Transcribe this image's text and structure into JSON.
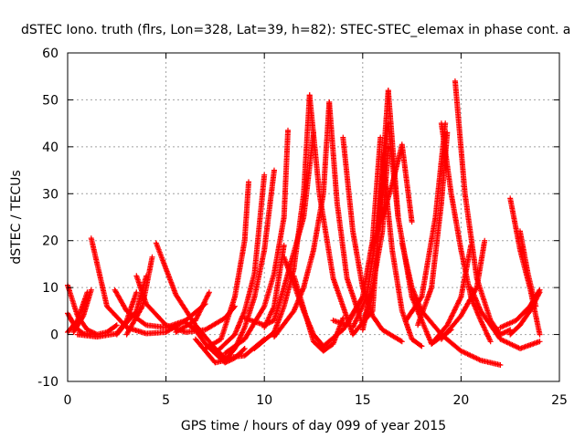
{
  "chart_data": {
    "type": "scatter",
    "title": "dSTEC Iono. truth (flrs, Lon=328, Lat=39, h=82): STEC-STEC_elemax in phase cont. a",
    "xlabel": "GPS time / hours of day 099 of year 2015",
    "ylabel": "dSTEC  / TECUs",
    "xlim": [
      0,
      25
    ],
    "ylim": [
      -10,
      60
    ],
    "xticks": [
      0,
      5,
      10,
      15,
      20,
      25
    ],
    "yticks": [
      -10,
      0,
      10,
      20,
      30,
      40,
      50,
      60
    ],
    "xtick_labels": [
      "0",
      "5",
      "10",
      "15",
      "20",
      "25"
    ],
    "ytick_labels": [
      "-10",
      "0",
      "10",
      "20",
      "30",
      "40",
      "50",
      "60"
    ],
    "grid": true,
    "marker": "plus",
    "color": "#ff0000",
    "series": [
      {
        "x": [
          0.0,
          0.5,
          1.0,
          1.5,
          2.0,
          2.5
        ],
        "y": [
          10.5,
          4.0,
          1.0,
          0.0,
          0.5,
          2.0
        ]
      },
      {
        "x": [
          0.0,
          0.4,
          0.8,
          1.2
        ],
        "y": [
          4.5,
          1.5,
          0.2,
          0.0
        ]
      },
      {
        "x": [
          0.0,
          0.5,
          1.0
        ],
        "y": [
          0.5,
          3.0,
          9.0
        ]
      },
      {
        "x": [
          0.3,
          0.8,
          1.2
        ],
        "y": [
          0.5,
          4.0,
          9.5
        ]
      },
      {
        "x": [
          1.2,
          2.0,
          3.0,
          4.0,
          5.0,
          6.0
        ],
        "y": [
          20.5,
          6.0,
          1.5,
          0.2,
          0.5,
          3.0
        ]
      },
      {
        "x": [
          0.5,
          1.5,
          2.5,
          3.0,
          3.5
        ],
        "y": [
          0.0,
          -0.5,
          0.2,
          3.0,
          9.0
        ]
      },
      {
        "x": [
          2.4,
          3.0,
          4.0,
          5.0,
          6.0,
          7.0
        ],
        "y": [
          9.5,
          5.0,
          2.0,
          1.5,
          3.0,
          6.5
        ]
      },
      {
        "x": [
          3.5,
          4.0,
          5.0,
          6.0,
          7.0,
          8.0,
          8.5
        ],
        "y": [
          12.5,
          6.5,
          2.0,
          0.5,
          1.0,
          3.5,
          6.0
        ]
      },
      {
        "x": [
          2.5,
          3.5,
          4.0
        ],
        "y": [
          0.0,
          5.0,
          12.5
        ]
      },
      {
        "x": [
          4.5,
          5.5,
          6.5,
          7.5,
          8.0,
          9.0,
          10.0
        ],
        "y": [
          19.5,
          8.5,
          2.0,
          -3.0,
          -5.0,
          -4.5,
          -1.0
        ]
      },
      {
        "x": [
          3.0,
          3.8,
          4.3
        ],
        "y": [
          0.0,
          6.0,
          16.5
        ]
      },
      {
        "x": [
          5.5,
          6.5,
          7.2
        ],
        "y": [
          0.5,
          3.0,
          9.0
        ]
      },
      {
        "x": [
          6.0,
          6.5,
          7.0,
          7.5,
          8.0,
          8.5,
          9.0
        ],
        "y": [
          2.5,
          1.0,
          -2.0,
          -4.0,
          -6.0,
          -5.0,
          -3.0
        ]
      },
      {
        "x": [
          6.5,
          7.5,
          8.0,
          8.5,
          9.0,
          9.5,
          10.0,
          10.5
        ],
        "y": [
          -1.0,
          -6.0,
          -5.5,
          -3.0,
          1.5,
          8.0,
          18.0,
          35.0
        ]
      },
      {
        "x": [
          7.0,
          7.8,
          8.5,
          9.0,
          9.2
        ],
        "y": [
          -3.0,
          -1.0,
          8.0,
          20.0,
          32.5
        ]
      },
      {
        "x": [
          7.5,
          8.5,
          9.0,
          9.5,
          10.0
        ],
        "y": [
          -4.0,
          0.0,
          5.0,
          13.0,
          34.0
        ]
      },
      {
        "x": [
          8.0,
          9.0,
          10.0,
          10.5,
          11.0,
          11.2
        ],
        "y": [
          -4.0,
          -1.0,
          6.0,
          13.0,
          25.0,
          43.5
        ]
      },
      {
        "x": [
          9.5,
          10.5,
          11.0,
          11.5,
          12.0,
          12.3
        ],
        "y": [
          -3.0,
          0.5,
          6.0,
          14.0,
          30.0,
          51.0
        ]
      },
      {
        "x": [
          9.0,
          10.0,
          10.5,
          11.0,
          12.0,
          12.5
        ],
        "y": [
          3.5,
          2.0,
          3.0,
          10.0,
          25.0,
          43.0
        ]
      },
      {
        "x": [
          10.0,
          10.5,
          11.0
        ],
        "y": [
          1.5,
          6.0,
          19.0
        ]
      },
      {
        "x": [
          10.5,
          11.5,
          12.0,
          12.5,
          13.0,
          13.3
        ],
        "y": [
          -0.5,
          5.0,
          10.0,
          18.0,
          30.0,
          49.5
        ]
      },
      {
        "x": [
          11.0,
          12.0,
          12.5,
          13.0,
          14.0,
          15.0
        ],
        "y": [
          16.5,
          5.0,
          0.0,
          -2.5,
          1.0,
          8.0
        ]
      },
      {
        "x": [
          11.5,
          12.5,
          13.0,
          13.5,
          14.0
        ],
        "y": [
          12.5,
          -1.5,
          -3.5,
          -2.0,
          3.5
        ]
      },
      {
        "x": [
          12.3,
          12.8,
          13.5,
          14.5,
          15.5,
          16.3
        ],
        "y": [
          51.0,
          30.0,
          12.0,
          0.0,
          5.0,
          52.0
        ]
      },
      {
        "x": [
          13.3,
          13.7,
          14.2,
          15.0,
          15.5
        ],
        "y": [
          49.5,
          28.0,
          12.0,
          2.0,
          10.0
        ]
      },
      {
        "x": [
          14.0,
          14.5,
          15.0,
          15.5,
          16.0,
          17.0
        ],
        "y": [
          42.0,
          22.0,
          10.0,
          4.0,
          1.0,
          -1.5
        ]
      },
      {
        "x": [
          13.5,
          14.2,
          15.0,
          15.5,
          15.9
        ],
        "y": [
          3.0,
          2.0,
          8.0,
          20.0,
          42.0
        ]
      },
      {
        "x": [
          14.5,
          15.2,
          15.8,
          16.3,
          16.8
        ],
        "y": [
          1.5,
          8.0,
          24.0,
          45.0,
          25.0
        ]
      },
      {
        "x": [
          15.0,
          15.5,
          16.0,
          16.3
        ],
        "y": [
          1.0,
          10.0,
          22.0,
          40.0
        ]
      },
      {
        "x": [
          16.3,
          16.8,
          17.5,
          18.5,
          19.5
        ],
        "y": [
          52.0,
          25.0,
          8.0,
          -2.0,
          1.0
        ]
      },
      {
        "x": [
          16.0,
          16.5,
          17.0,
          17.5,
          18.0
        ],
        "y": [
          38.0,
          18.0,
          5.0,
          -1.0,
          -2.5
        ]
      },
      {
        "x": [
          15.5,
          16.0,
          16.5,
          17.0,
          17.5
        ],
        "y": [
          19.0,
          25.0,
          32.0,
          40.5,
          24.0
        ]
      },
      {
        "x": [
          17.0,
          17.5,
          18.0,
          19.0,
          20.0,
          21.0,
          22.0
        ],
        "y": [
          19.5,
          10.0,
          5.0,
          0.0,
          -3.5,
          -5.5,
          -6.5
        ]
      },
      {
        "x": [
          17.2,
          18.0,
          18.7,
          19.2
        ],
        "y": [
          3.0,
          8.0,
          25.0,
          45.0
        ]
      },
      {
        "x": [
          17.8,
          18.5,
          19.0,
          19.3
        ],
        "y": [
          2.0,
          10.0,
          28.0,
          43.0
        ]
      },
      {
        "x": [
          19.0,
          19.5,
          20.0,
          20.5,
          21.0,
          21.5
        ],
        "y": [
          45.0,
          30.0,
          18.0,
          8.0,
          3.0,
          -1.5
        ]
      },
      {
        "x": [
          19.7,
          20.2,
          20.8,
          21.5,
          22.0,
          22.5
        ],
        "y": [
          54.0,
          30.0,
          12.0,
          3.0,
          0.0,
          1.0
        ]
      },
      {
        "x": [
          18.5,
          19.3,
          20.0,
          20.5
        ],
        "y": [
          -2.0,
          2.0,
          8.0,
          19.0
        ]
      },
      {
        "x": [
          19.0,
          20.0,
          20.8,
          21.2
        ],
        "y": [
          -1.0,
          4.0,
          10.0,
          20.0
        ]
      },
      {
        "x": [
          20.5,
          21.0,
          22.0,
          23.0,
          24.0
        ],
        "y": [
          10.0,
          5.0,
          -1.0,
          -3.0,
          -1.5
        ]
      },
      {
        "x": [
          22.5,
          23.0,
          23.5,
          24.0
        ],
        "y": [
          29.0,
          18.0,
          10.0,
          0.0
        ]
      },
      {
        "x": [
          22.5,
          23.0,
          23.5,
          24.0
        ],
        "y": [
          0.0,
          2.0,
          5.0,
          9.0
        ]
      },
      {
        "x": [
          22.0,
          22.8,
          23.5,
          24.0
        ],
        "y": [
          1.5,
          3.0,
          6.0,
          9.5
        ]
      },
      {
        "x": [
          23.0,
          23.4,
          23.8
        ],
        "y": [
          22.0,
          13.0,
          6.0
        ]
      }
    ]
  }
}
